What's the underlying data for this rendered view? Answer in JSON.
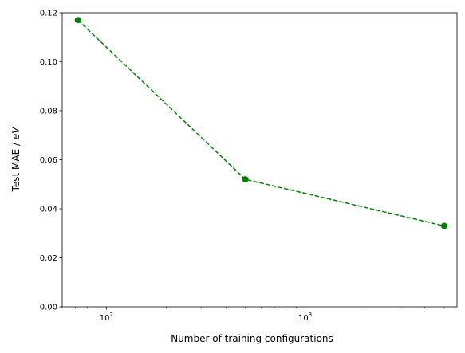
{
  "chart_data": {
    "type": "line",
    "title": "",
    "xlabel": "Number of training configurations",
    "ylabel_prefix": "Test MAE / ",
    "ylabel_unit": "eV",
    "x_scale": "log",
    "xlim": [
      60,
      5800
    ],
    "ylim": [
      0,
      0.12
    ],
    "y_ticks": [
      0.0,
      0.02,
      0.04,
      0.06,
      0.08,
      0.1,
      0.12
    ],
    "y_tick_labels": [
      "0.00",
      "0.02",
      "0.04",
      "0.06",
      "0.08",
      "0.10",
      "0.12"
    ],
    "x_major_ticks": [
      100,
      1000
    ],
    "x_major_tick_labels": [
      {
        "base": "10",
        "exp": "2"
      },
      {
        "base": "10",
        "exp": "3"
      }
    ],
    "grid": false,
    "legend": "none",
    "series": [
      {
        "x": [
          72,
          500,
          5000
        ],
        "y": [
          0.117,
          0.052,
          0.033
        ],
        "color": "#008000",
        "line_style": "dashed",
        "marker": "circle"
      }
    ]
  }
}
